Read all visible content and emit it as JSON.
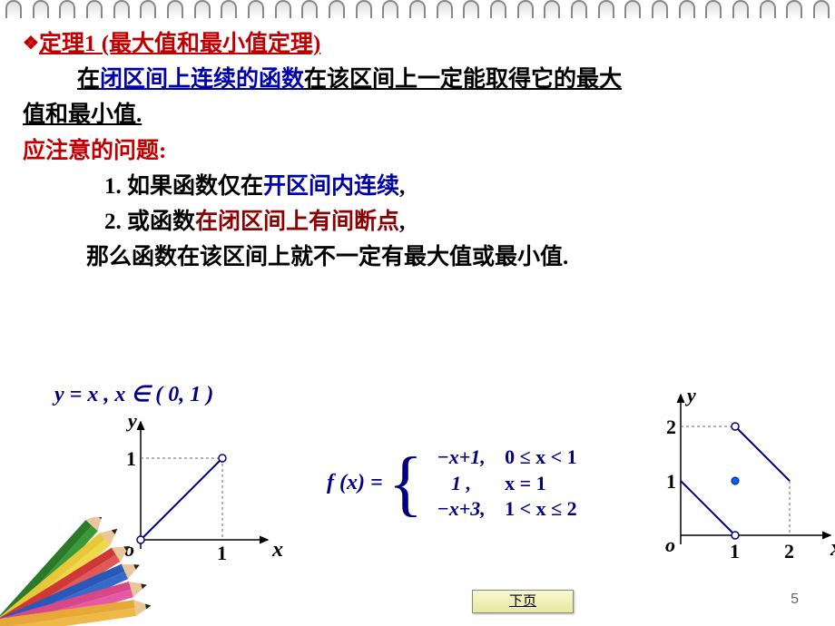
{
  "theorem": {
    "bullet": "❖",
    "title": "定理1 (最大值和最小值定理)",
    "body_prefix": "在",
    "body_highlight": "闭区间上连续的函数",
    "body_suffix1": "在该区间上一定能取得它的最大",
    "body_suffix2": "值和最小值."
  },
  "attention_title": "应注意的问题:",
  "point1": {
    "num": "1.",
    "prefix": " 如果函数仅在",
    "highlight": "开区间内连续",
    "suffix": ","
  },
  "point2": {
    "num": "2.",
    "prefix": " 或函数",
    "highlight": "在闭区间上有间断点",
    "suffix": ","
  },
  "conclusion": "那么函数在该区间上就不一定有最大值或最小值.",
  "equation1": "y = x , x ∈ ( 0, 1 )",
  "piecewise": {
    "lhs": "f (x) =",
    "rows": [
      {
        "expr": "−x+1,",
        "cond": "0 ≤ x < 1"
      },
      {
        "expr": "1 ,",
        "cond": "x = 1"
      },
      {
        "expr": "−x+3,",
        "cond": "1 < x ≤ 2"
      }
    ]
  },
  "chart1": {
    "origin_label": "o",
    "x_label": "x",
    "y_label": "y",
    "ticks": {
      "x1": "1",
      "y1": "1"
    },
    "axis_color": "#000000",
    "line_color": "#000080",
    "dash_color": "#666666"
  },
  "chart2": {
    "origin_label": "o",
    "x_label": "x",
    "y_label": "y",
    "ticks": {
      "x1": "1",
      "x2": "2",
      "y1": "1",
      "y2": "2"
    },
    "axis_color": "#000000",
    "line_color": "#000080",
    "dash_color": "#666666",
    "dot_color": "#0066ff"
  },
  "next_button": "下页",
  "page_number": "5",
  "spiral_count": 31,
  "pencil_colors": [
    "#2a7a2a",
    "#3a9a3a",
    "#e6c838",
    "#f0d848",
    "#d03838",
    "#e05858",
    "#2858b8",
    "#3868c8",
    "#d84888",
    "#e858a8",
    "#e8a838",
    "#f0b848"
  ]
}
